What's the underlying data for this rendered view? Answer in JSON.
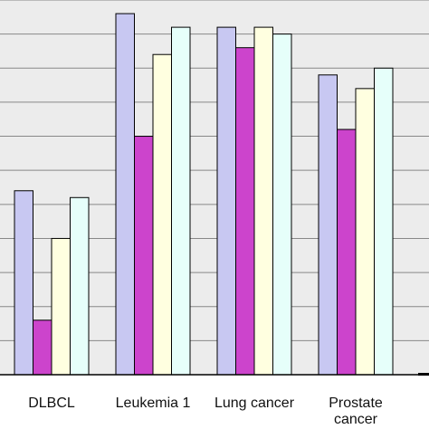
{
  "chart_data": {
    "type": "bar",
    "categories": [
      "DLBCL",
      "Leukemia 1",
      "Lung cancer",
      "Prostate\ncancer"
    ],
    "series": [
      {
        "values": [
          72,
          98,
          96,
          89
        ],
        "color": "#c8c8f2"
      },
      {
        "values": [
          53,
          80,
          93,
          81
        ],
        "color": "#cc44cc"
      },
      {
        "values": [
          65,
          92,
          96,
          87
        ],
        "color": "#ffffe0"
      },
      {
        "values": [
          71,
          96,
          95,
          90
        ],
        "color": "#e6fffa"
      }
    ],
    "ylim": [
      45,
      100
    ],
    "grid": true,
    "legend": "none",
    "title": "",
    "xlabel": "",
    "ylabel": ""
  },
  "colors": {
    "plot_background": "#ececec",
    "gridline": "#888888",
    "bar_outline": "#000000"
  }
}
